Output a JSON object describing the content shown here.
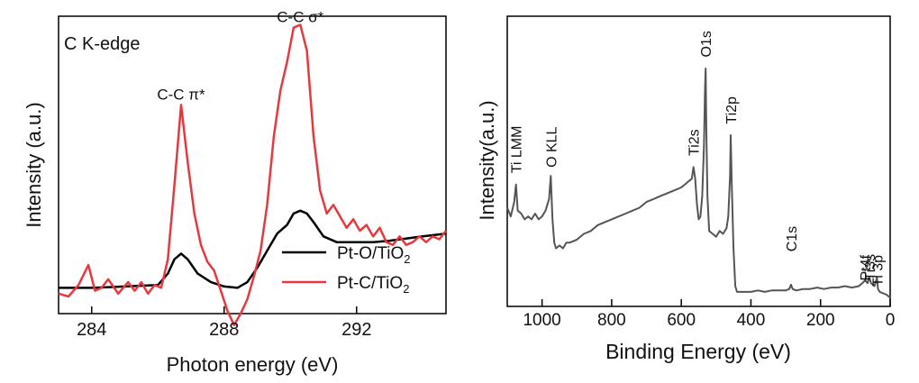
{
  "chart_data": [
    {
      "type": "line",
      "title": "C K-edge",
      "xlabel": "Photon energy (eV)",
      "ylabel": "Intensity (a.u.)",
      "xlim": [
        283,
        294.7
      ],
      "ylim": [
        0,
        1.04
      ],
      "xticks": [
        284,
        288,
        292
      ],
      "tick_labels": [
        "284",
        "288",
        "292"
      ],
      "peak_labels": [
        {
          "text": "C-C π*",
          "x": 286.7,
          "y": 0.73
        },
        {
          "text": "C-C σ*",
          "x": 290.3,
          "y": 1.0
        }
      ],
      "legend": {
        "placement": "lower-right",
        "entries": [
          {
            "label": "Pt-O/TiO",
            "sub": "2",
            "color": "#000000"
          },
          {
            "label": "Pt-C/TiO",
            "sub": "2",
            "color": "#e8383d"
          }
        ]
      },
      "series": [
        {
          "name": "Pt-O/TiO2",
          "color": "#000000",
          "x": [
            283.0,
            284.0,
            285.0,
            286.0,
            286.3,
            286.5,
            286.7,
            286.9,
            287.2,
            287.6,
            288.0,
            288.4,
            288.7,
            289.0,
            289.3,
            289.6,
            289.9,
            290.1,
            290.3,
            290.5,
            290.7,
            291.0,
            291.4,
            292.0,
            292.5,
            293.0,
            294.0,
            294.7
          ],
          "y": [
            0.09,
            0.09,
            0.095,
            0.1,
            0.14,
            0.19,
            0.21,
            0.19,
            0.14,
            0.11,
            0.095,
            0.09,
            0.11,
            0.16,
            0.22,
            0.28,
            0.31,
            0.35,
            0.36,
            0.35,
            0.32,
            0.27,
            0.25,
            0.25,
            0.25,
            0.255,
            0.27,
            0.28
          ]
        },
        {
          "name": "Pt-C/TiO2",
          "color": "#e8383d",
          "x": [
            283.0,
            283.3,
            283.6,
            283.9,
            284.1,
            284.3,
            284.5,
            284.8,
            285.1,
            285.3,
            285.5,
            285.7,
            285.9,
            286.1,
            286.3,
            286.5,
            286.7,
            286.9,
            287.1,
            287.3,
            287.5,
            287.7,
            287.9,
            288.1,
            288.3,
            288.5,
            288.7,
            288.9,
            289.1,
            289.3,
            289.5,
            289.7,
            289.9,
            290.1,
            290.3,
            290.5,
            290.7,
            290.9,
            291.1,
            291.3,
            291.5,
            291.7,
            291.9,
            292.1,
            292.3,
            292.5,
            292.7,
            292.9,
            293.1,
            293.3,
            293.5,
            293.7,
            293.9,
            294.1,
            294.3,
            294.5,
            294.7
          ],
          "y": [
            0.07,
            0.06,
            0.1,
            0.17,
            0.08,
            0.09,
            0.12,
            0.07,
            0.11,
            0.08,
            0.11,
            0.07,
            0.1,
            0.09,
            0.19,
            0.45,
            0.73,
            0.53,
            0.35,
            0.24,
            0.18,
            0.15,
            0.08,
            0.01,
            -0.04,
            0.0,
            0.05,
            0.13,
            0.22,
            0.38,
            0.62,
            0.78,
            0.88,
            1.0,
            1.01,
            0.92,
            0.62,
            0.43,
            0.35,
            0.38,
            0.34,
            0.3,
            0.33,
            0.29,
            0.31,
            0.27,
            0.3,
            0.25,
            0.24,
            0.27,
            0.24,
            0.25,
            0.27,
            0.25,
            0.27,
            0.26,
            0.29
          ]
        }
      ]
    },
    {
      "type": "line",
      "title": "",
      "xlabel": "Binding Energy (eV)",
      "ylabel": "Intensity(a.u.)",
      "xlim": [
        1100,
        0
      ],
      "ylim": [
        0,
        1.0
      ],
      "xticks": [
        1000,
        800,
        600,
        400,
        200,
        0
      ],
      "tick_labels": [
        "1000",
        "800",
        "600",
        "400",
        "200",
        "0"
      ],
      "peak_labels": [
        {
          "text": "Ti LMM",
          "x": 1075,
          "y": 0.44
        },
        {
          "text": "O KLL",
          "x": 975,
          "y": 0.46
        },
        {
          "text": "Ti2s",
          "x": 565,
          "y": 0.5
        },
        {
          "text": "O1s",
          "x": 530,
          "y": 0.84
        },
        {
          "text": "Ti2p",
          "x": 458,
          "y": 0.61
        },
        {
          "text": "C1s",
          "x": 285,
          "y": 0.17
        },
        {
          "text": "Pt4f",
          "x": 72,
          "y": 0.07
        },
        {
          "text": "Ti3s",
          "x": 60,
          "y": 0.07
        },
        {
          "text": "Ti 3p",
          "x": 38,
          "y": 0.05
        }
      ],
      "series": [
        {
          "name": "survey",
          "color": "#555555",
          "x": [
            1100,
            1090,
            1080,
            1075,
            1070,
            1060,
            1050,
            1040,
            1030,
            1020,
            1010,
            1000,
            990,
            980,
            975,
            970,
            965,
            960,
            950,
            940,
            930,
            920,
            900,
            880,
            860,
            840,
            820,
            800,
            780,
            760,
            740,
            720,
            700,
            680,
            660,
            640,
            620,
            600,
            580,
            570,
            565,
            560,
            555,
            550,
            545,
            540,
            535,
            532,
            530,
            528,
            525,
            520,
            510,
            500,
            490,
            480,
            470,
            465,
            460,
            458,
            455,
            450,
            445,
            440,
            420,
            400,
            380,
            360,
            340,
            320,
            300,
            290,
            285,
            280,
            270,
            250,
            230,
            210,
            190,
            170,
            150,
            130,
            110,
            90,
            80,
            72,
            65,
            60,
            55,
            45,
            40,
            38,
            35,
            30,
            20,
            10,
            0
          ],
          "y": [
            0.34,
            0.31,
            0.36,
            0.42,
            0.33,
            0.32,
            0.3,
            0.31,
            0.3,
            0.32,
            0.3,
            0.31,
            0.33,
            0.37,
            0.45,
            0.3,
            0.22,
            0.2,
            0.21,
            0.2,
            0.22,
            0.22,
            0.23,
            0.25,
            0.26,
            0.28,
            0.29,
            0.3,
            0.31,
            0.32,
            0.33,
            0.34,
            0.36,
            0.37,
            0.38,
            0.39,
            0.4,
            0.41,
            0.43,
            0.44,
            0.48,
            0.44,
            0.35,
            0.3,
            0.31,
            0.38,
            0.55,
            0.75,
            0.82,
            0.6,
            0.38,
            0.26,
            0.25,
            0.24,
            0.26,
            0.25,
            0.27,
            0.31,
            0.45,
            0.59,
            0.42,
            0.2,
            0.07,
            0.05,
            0.05,
            0.05,
            0.055,
            0.05,
            0.055,
            0.055,
            0.055,
            0.06,
            0.075,
            0.06,
            0.055,
            0.06,
            0.06,
            0.065,
            0.06,
            0.065,
            0.065,
            0.07,
            0.065,
            0.07,
            0.08,
            0.09,
            0.08,
            0.1,
            0.08,
            0.07,
            0.09,
            0.1,
            0.06,
            0.05,
            0.045,
            0.04,
            0.03
          ]
        }
      ]
    }
  ]
}
